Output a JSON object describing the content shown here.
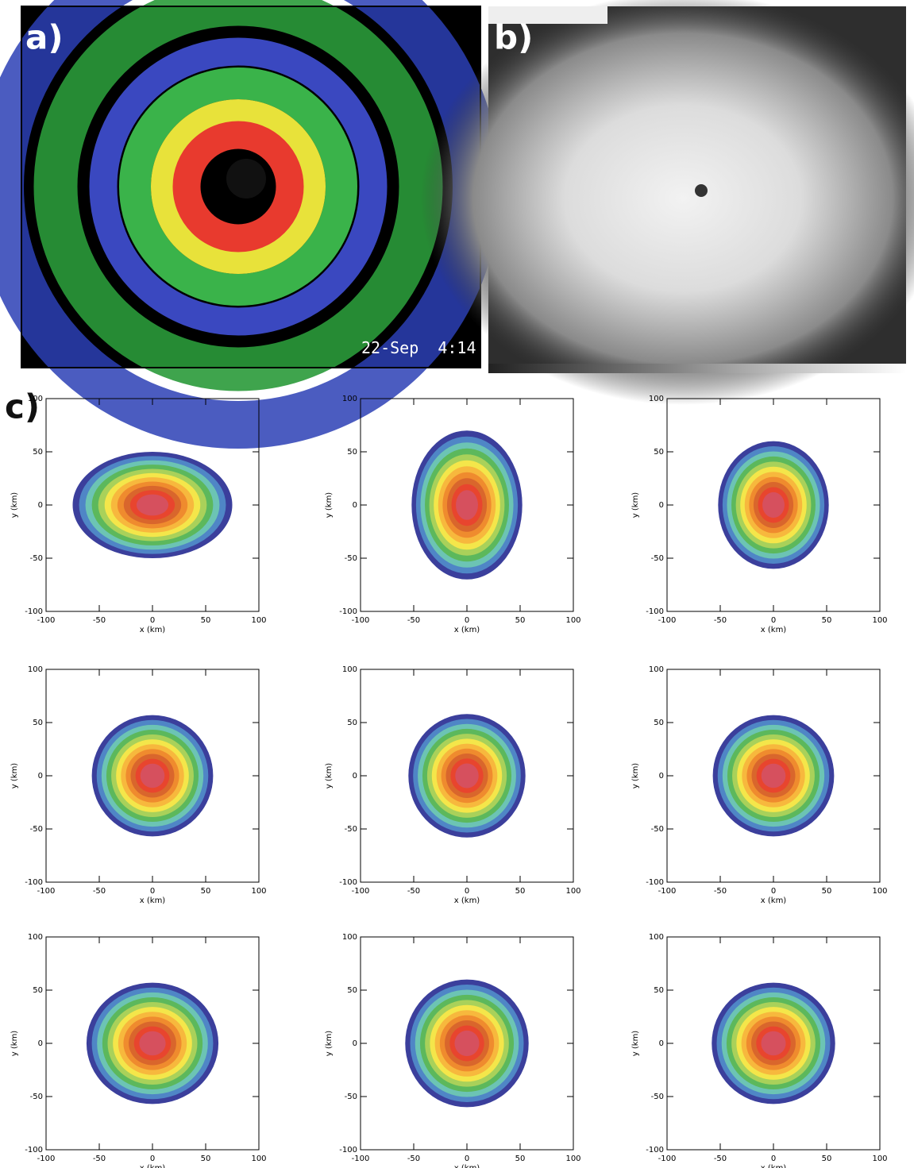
{
  "panels": {
    "a": {
      "label": "a)",
      "timestamp": "22-Sep  4:14"
    },
    "b": {
      "label": "b)"
    },
    "c": {
      "label": "c)"
    }
  },
  "contour_colors": [
    "#3b3f9c",
    "#4f86c6",
    "#6cc4b4",
    "#5cb85c",
    "#a9d15a",
    "#f4e64a",
    "#f7b83d",
    "#ef8b2e",
    "#d9662c",
    "#e8452e",
    "#d6505e"
  ],
  "chart_data": [
    {
      "type": "contour",
      "xlabel": "x (km)",
      "ylabel": "y (km)",
      "xlim": [
        -100,
        100
      ],
      "ylim": [
        -100,
        100
      ],
      "xticks": [
        -100,
        -50,
        0,
        50,
        100
      ],
      "yticks": [
        -100,
        -50,
        0,
        50,
        100
      ],
      "outer_contour": {
        "rx": 75,
        "ry": 50
      }
    },
    {
      "type": "contour",
      "xlabel": "x (km)",
      "ylabel": "y (km)",
      "xlim": [
        -100,
        100
      ],
      "ylim": [
        -100,
        100
      ],
      "xticks": [
        -100,
        -50,
        0,
        50,
        100
      ],
      "yticks": [
        -100,
        -50,
        0,
        50,
        100
      ],
      "outer_contour": {
        "rx": 52,
        "ry": 70
      }
    },
    {
      "type": "contour",
      "xlabel": "x (km)",
      "ylabel": "y (km)",
      "xlim": [
        -100,
        100
      ],
      "ylim": [
        -100,
        100
      ],
      "xticks": [
        -100,
        -50,
        0,
        50,
        100
      ],
      "yticks": [
        -100,
        -50,
        0,
        50,
        100
      ],
      "outer_contour": {
        "rx": 52,
        "ry": 60
      }
    },
    {
      "type": "contour",
      "xlabel": "x (km)",
      "ylabel": "y (km)",
      "xlim": [
        -100,
        100
      ],
      "ylim": [
        -100,
        100
      ],
      "xticks": [
        -100,
        -50,
        0,
        50,
        100
      ],
      "yticks": [
        -100,
        -50,
        0,
        50,
        100
      ],
      "outer_contour": {
        "rx": 57,
        "ry": 57
      }
    },
    {
      "type": "contour",
      "xlabel": "x (km)",
      "ylabel": "y (km)",
      "xlim": [
        -100,
        100
      ],
      "ylim": [
        -100,
        100
      ],
      "xticks": [
        -100,
        -50,
        0,
        50,
        100
      ],
      "yticks": [
        -100,
        -50,
        0,
        50,
        100
      ],
      "outer_contour": {
        "rx": 55,
        "ry": 58
      }
    },
    {
      "type": "contour",
      "xlabel": "x (km)",
      "ylabel": "y (km)",
      "xlim": [
        -100,
        100
      ],
      "ylim": [
        -100,
        100
      ],
      "xticks": [
        -100,
        -50,
        0,
        50,
        100
      ],
      "yticks": [
        -100,
        -50,
        0,
        50,
        100
      ],
      "outer_contour": {
        "rx": 57,
        "ry": 57
      }
    },
    {
      "type": "contour",
      "xlabel": "x (km)",
      "ylabel": "y (km)",
      "xlim": [
        -100,
        100
      ],
      "ylim": [
        -100,
        100
      ],
      "xticks": [
        -100,
        -50,
        0,
        50,
        100
      ],
      "yticks": [
        -100,
        -50,
        0,
        50,
        100
      ],
      "outer_contour": {
        "rx": 62,
        "ry": 57
      }
    },
    {
      "type": "contour",
      "xlabel": "x (km)",
      "ylabel": "y (km)",
      "xlim": [
        -100,
        100
      ],
      "ylim": [
        -100,
        100
      ],
      "xticks": [
        -100,
        -50,
        0,
        50,
        100
      ],
      "yticks": [
        -100,
        -50,
        0,
        50,
        100
      ],
      "outer_contour": {
        "rx": 58,
        "ry": 60
      }
    },
    {
      "type": "contour",
      "xlabel": "x (km)",
      "ylabel": "y (km)",
      "xlim": [
        -100,
        100
      ],
      "ylim": [
        -100,
        100
      ],
      "xticks": [
        -100,
        -50,
        0,
        50,
        100
      ],
      "yticks": [
        -100,
        -50,
        0,
        50,
        100
      ],
      "outer_contour": {
        "rx": 58,
        "ry": 57
      }
    }
  ]
}
